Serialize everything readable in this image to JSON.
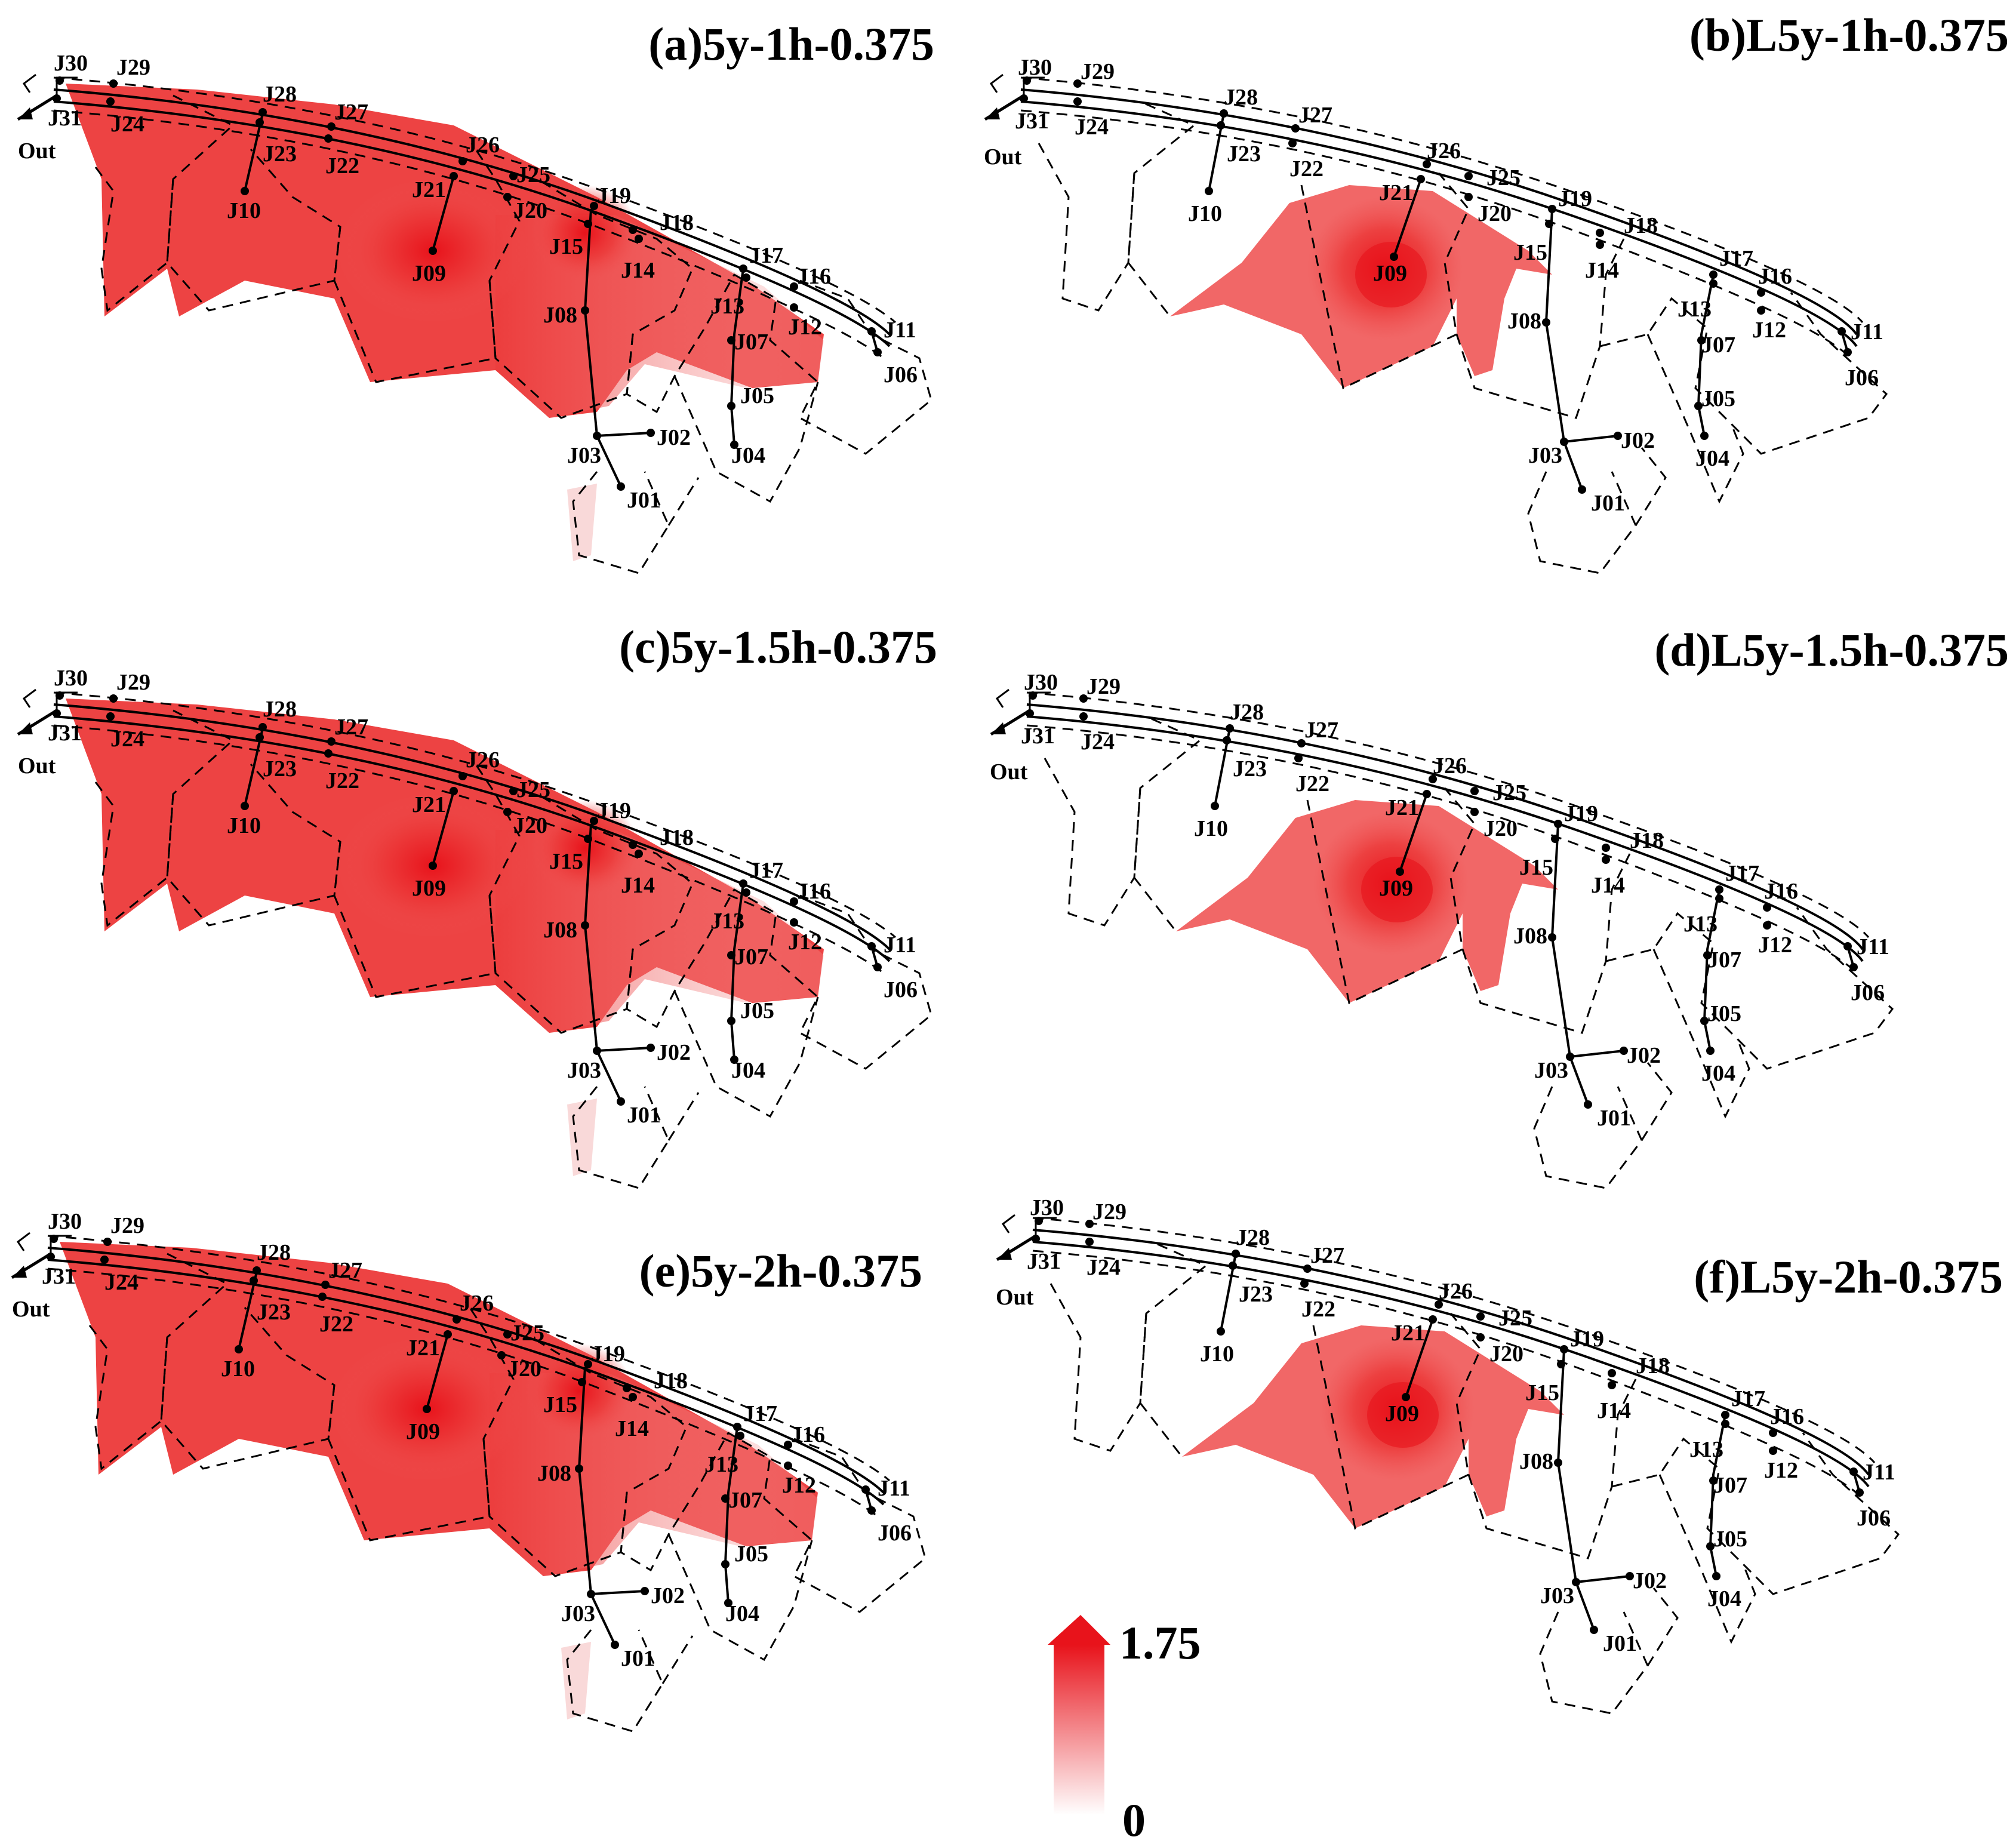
{
  "panels": [
    {
      "id": "a",
      "title": "(a)5y-1h-0.375",
      "layout": "full"
    },
    {
      "id": "b",
      "title": "(b)L5y-1h-0.375",
      "layout": "lid"
    },
    {
      "id": "c",
      "title": "(c)5y-1.5h-0.375",
      "layout": "full"
    },
    {
      "id": "d",
      "title": "(d)L5y-1.5h-0.375",
      "layout": "lid"
    },
    {
      "id": "e",
      "title": "(e)5y-2h-0.375",
      "layout": "full"
    },
    {
      "id": "f",
      "title": "(f)L5y-2h-0.375",
      "layout": "lid"
    }
  ],
  "junction_labels": [
    "J01",
    "J02",
    "J03",
    "J04",
    "J05",
    "J06",
    "J07",
    "J08",
    "J09",
    "J10",
    "J11",
    "J12",
    "J13",
    "J14",
    "J15",
    "J16",
    "J17",
    "J18",
    "J19",
    "J20",
    "J21",
    "J22",
    "J23",
    "J24",
    "J25",
    "J26",
    "J27",
    "J28",
    "J29",
    "J30",
    "J31"
  ],
  "outfall_label": "Out",
  "scale": {
    "max_label": "1.75",
    "min_label": "0",
    "color": "#e8131b"
  }
}
